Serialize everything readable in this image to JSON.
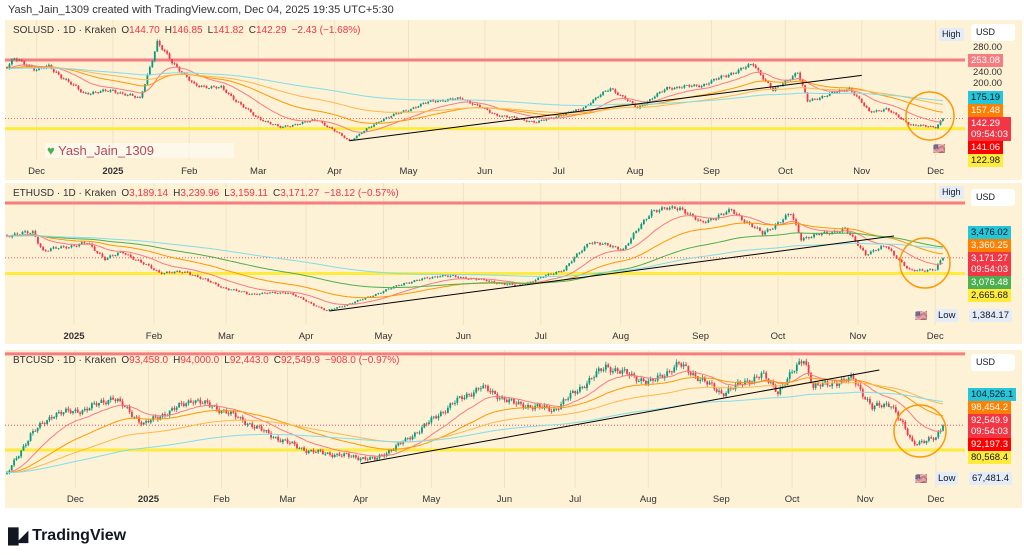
{
  "header": {
    "text": "Yash_Jain_1309 created with TradingView.com, Dec 04, 2025 19:35 UTC+5:30"
  },
  "watermark": "Yash_Jain_1309",
  "brand": {
    "name": "TradingView",
    "icon": "tradingview-logo"
  },
  "colors": {
    "background": "#fdf1d6",
    "up": "#089981",
    "down": "#f23645",
    "resistance": "#f77c80",
    "support": "#ffeb3b",
    "circle": "#ff9800",
    "trendline": "#000000"
  },
  "chart_data": [
    {
      "type": "candlestick",
      "symbol": "SOLUSD",
      "legend": {
        "title": "SOLUSD · 1D · Kraken",
        "o": "144.70",
        "h": "146.85",
        "l": "141.82",
        "c": "142.29",
        "chg": "−2.43 (−1.68%)"
      },
      "currency": "USD",
      "high_tag": "High",
      "x_range": [
        "2024-11-19",
        "2025-12-04"
      ],
      "y_ticks": [
        "280.00",
        "240.00",
        "200.00"
      ],
      "months": [
        [
          "Dec",
          "2024-12-01"
        ],
        [
          "2025",
          "2025-01-01"
        ],
        [
          "Feb",
          "2025-02-01"
        ],
        [
          "Mar",
          "2025-03-01"
        ],
        [
          "Apr",
          "2025-04-01"
        ],
        [
          "May",
          "2025-05-01"
        ],
        [
          "Jun",
          "2025-06-01"
        ],
        [
          "Jul",
          "2025-07-01"
        ],
        [
          "Aug",
          "2025-08-01"
        ],
        [
          "Sep",
          "2025-09-01"
        ],
        [
          "Oct",
          "2025-10-01"
        ],
        [
          "Nov",
          "2025-11-01"
        ],
        [
          "Dec",
          "2025-12-01"
        ]
      ],
      "price_labels": [
        {
          "text": "253.08",
          "color": "#f77c80"
        },
        {
          "text": "175.19",
          "color": "#26c6da"
        },
        {
          "text": "157.48",
          "color": "#ff8000"
        },
        {
          "text": "142.29",
          "sub": "09:54:03",
          "color": "#f23645"
        },
        {
          "text": "141.06",
          "color": "#ff0000"
        },
        {
          "text": "122.98",
          "color": "#ffeb3b"
        }
      ],
      "resistance": 253.08,
      "support": 122.98,
      "last": 142.29,
      "trendline": [
        [
          "2025-04-07",
          100
        ],
        [
          "2025-11-01",
          224
        ]
      ],
      "approx_closes": [
        [
          "2024-11-19",
          240
        ],
        [
          "2024-11-22",
          255
        ],
        [
          "2024-12-01",
          235
        ],
        [
          "2024-12-06",
          240
        ],
        [
          "2024-12-20",
          190
        ],
        [
          "2025-01-01",
          195
        ],
        [
          "2025-01-12",
          180
        ],
        [
          "2025-01-19",
          285
        ],
        [
          "2025-01-25",
          250
        ],
        [
          "2025-02-03",
          205
        ],
        [
          "2025-02-14",
          200
        ],
        [
          "2025-02-28",
          145
        ],
        [
          "2025-03-10",
          125
        ],
        [
          "2025-03-25",
          140
        ],
        [
          "2025-04-07",
          100
        ],
        [
          "2025-04-20",
          140
        ],
        [
          "2025-05-10",
          175
        ],
        [
          "2025-05-23",
          180
        ],
        [
          "2025-06-05",
          150
        ],
        [
          "2025-06-22",
          135
        ],
        [
          "2025-07-10",
          160
        ],
        [
          "2025-07-22",
          200
        ],
        [
          "2025-08-02",
          162
        ],
        [
          "2025-08-14",
          200
        ],
        [
          "2025-08-28",
          205
        ],
        [
          "2025-09-18",
          245
        ],
        [
          "2025-09-26",
          195
        ],
        [
          "2025-10-06",
          230
        ],
        [
          "2025-10-10",
          175
        ],
        [
          "2025-10-27",
          200
        ],
        [
          "2025-11-04",
          155
        ],
        [
          "2025-11-11",
          160
        ],
        [
          "2025-11-21",
          130
        ],
        [
          "2025-12-01",
          126
        ],
        [
          "2025-12-04",
          142.29
        ]
      ]
    },
    {
      "type": "candlestick",
      "symbol": "ETHUSD",
      "legend": {
        "title": "ETHUSD · 1D · Kraken",
        "o": "3,189.14",
        "h": "3,239.96",
        "l": "3,159.11",
        "c": "3,171.27",
        "chg": "−18.12 (−0.57%)"
      },
      "currency": "USD",
      "high_tag": "High",
      "low_tag": "Low",
      "low_value": "1,384.17",
      "x_range": [
        "2024-12-06",
        "2025-12-04"
      ],
      "months": [
        [
          "2025",
          "2025-01-01"
        ],
        [
          "Feb",
          "2025-02-01"
        ],
        [
          "Mar",
          "2025-03-01"
        ],
        [
          "Apr",
          "2025-04-01"
        ],
        [
          "May",
          "2025-05-01"
        ],
        [
          "Jun",
          "2025-06-01"
        ],
        [
          "Jul",
          "2025-07-01"
        ],
        [
          "Aug",
          "2025-08-01"
        ],
        [
          "Sep",
          "2025-09-01"
        ],
        [
          "Oct",
          "2025-10-01"
        ],
        [
          "Nov",
          "2025-11-01"
        ],
        [
          "Dec",
          "2025-12-01"
        ]
      ],
      "price_labels": [
        {
          "text": "3,476.02",
          "color": "#26c6da"
        },
        {
          "text": "3,360.25",
          "color": "#ff8000"
        },
        {
          "text": "3,171.27",
          "sub": "09:54:03",
          "color": "#f23645"
        },
        {
          "text": "3,076.48",
          "color": "#4caf50"
        },
        {
          "text": "2,665.68",
          "color": "#ffeb3b"
        }
      ],
      "resistance": 4950,
      "support": 2665.68,
      "last": 3171.27,
      "trendline": [
        [
          "2025-04-10",
          1450
        ],
        [
          "2025-11-15",
          3880
        ]
      ],
      "approx_closes": [
        [
          "2024-12-06",
          3900
        ],
        [
          "2024-12-16",
          4000
        ],
        [
          "2024-12-20",
          3400
        ],
        [
          "2025-01-06",
          3650
        ],
        [
          "2025-01-13",
          3150
        ],
        [
          "2025-01-20",
          3350
        ],
        [
          "2025-02-03",
          2700
        ],
        [
          "2025-02-14",
          2700
        ],
        [
          "2025-02-28",
          2200
        ],
        [
          "2025-03-10",
          2000
        ],
        [
          "2025-03-25",
          2050
        ],
        [
          "2025-04-09",
          1450
        ],
        [
          "2025-04-22",
          1800
        ],
        [
          "2025-05-09",
          2350
        ],
        [
          "2025-05-23",
          2600
        ],
        [
          "2025-06-05",
          2500
        ],
        [
          "2025-06-22",
          2250
        ],
        [
          "2025-07-10",
          2800
        ],
        [
          "2025-07-20",
          3700
        ],
        [
          "2025-08-02",
          3450
        ],
        [
          "2025-08-13",
          4700
        ],
        [
          "2025-08-24",
          4800
        ],
        [
          "2025-09-01",
          4300
        ],
        [
          "2025-09-13",
          4700
        ],
        [
          "2025-09-25",
          3950
        ],
        [
          "2025-10-06",
          4600
        ],
        [
          "2025-10-10",
          3800
        ],
        [
          "2025-10-27",
          4100
        ],
        [
          "2025-11-04",
          3300
        ],
        [
          "2025-11-12",
          3550
        ],
        [
          "2025-11-21",
          2750
        ],
        [
          "2025-12-01",
          2800
        ],
        [
          "2025-12-04",
          3171.27
        ]
      ]
    },
    {
      "type": "candlestick",
      "symbol": "BTCUSD",
      "legend": {
        "title": "BTCUSD · 1D · Kraken",
        "o": "93,458.0",
        "h": "94,000.0",
        "l": "92,443.0",
        "c": "92,549.9",
        "chg": "−908.0 (−0.97%)"
      },
      "currency": "USD",
      "low_tag": "Low",
      "low_value": "67,481.4",
      "x_range": [
        "2024-11-02",
        "2025-12-04"
      ],
      "months": [
        [
          "Dec",
          "2024-12-01"
        ],
        [
          "2025",
          "2025-01-01"
        ],
        [
          "Feb",
          "2025-02-01"
        ],
        [
          "Mar",
          "2025-03-01"
        ],
        [
          "Apr",
          "2025-04-01"
        ],
        [
          "May",
          "2025-05-01"
        ],
        [
          "Jun",
          "2025-06-01"
        ],
        [
          "Jul",
          "2025-07-01"
        ],
        [
          "Aug",
          "2025-08-01"
        ],
        [
          "Sep",
          "2025-09-01"
        ],
        [
          "Oct",
          "2025-10-01"
        ],
        [
          "Nov",
          "2025-11-01"
        ],
        [
          "Dec",
          "2025-12-01"
        ]
      ],
      "price_labels": [
        {
          "text": "104,526.1",
          "color": "#26c6da"
        },
        {
          "text": "98,454.2",
          "color": "#ff8000"
        },
        {
          "text": "92,549.9",
          "sub": "09:54:03",
          "color": "#f23645"
        },
        {
          "text": "92,197.3",
          "color": "#ff0000"
        },
        {
          "text": "80,568.4",
          "color": "#ffeb3b"
        }
      ],
      "resistance": 127000,
      "support": 80568.4,
      "last": 92549.9,
      "trendline": [
        [
          "2025-04-01",
          74000
        ],
        [
          "2025-11-07",
          119200
        ]
      ],
      "approx_closes": [
        [
          "2024-11-02",
          69000
        ],
        [
          "2024-11-12",
          88000
        ],
        [
          "2024-11-22",
          98000
        ],
        [
          "2024-12-05",
          100000
        ],
        [
          "2024-12-17",
          106000
        ],
        [
          "2024-12-30",
          93000
        ],
        [
          "2025-01-20",
          105000
        ],
        [
          "2025-02-03",
          99000
        ],
        [
          "2025-02-25",
          86000
        ],
        [
          "2025-03-10",
          80000
        ],
        [
          "2025-04-07",
          76000
        ],
        [
          "2025-04-20",
          85000
        ],
        [
          "2025-05-10",
          103000
        ],
        [
          "2025-05-22",
          111000
        ],
        [
          "2025-06-05",
          103000
        ],
        [
          "2025-06-22",
          100000
        ],
        [
          "2025-07-14",
          121000
        ],
        [
          "2025-08-02",
          113000
        ],
        [
          "2025-08-14",
          122000
        ],
        [
          "2025-09-01",
          108000
        ],
        [
          "2025-09-18",
          117000
        ],
        [
          "2025-09-25",
          109000
        ],
        [
          "2025-10-06",
          125000
        ],
        [
          "2025-10-10",
          111000
        ],
        [
          "2025-10-27",
          115000
        ],
        [
          "2025-11-04",
          101000
        ],
        [
          "2025-11-12",
          103000
        ],
        [
          "2025-11-21",
          84000
        ],
        [
          "2025-12-01",
          86000
        ],
        [
          "2025-12-04",
          92549.9
        ]
      ]
    }
  ]
}
